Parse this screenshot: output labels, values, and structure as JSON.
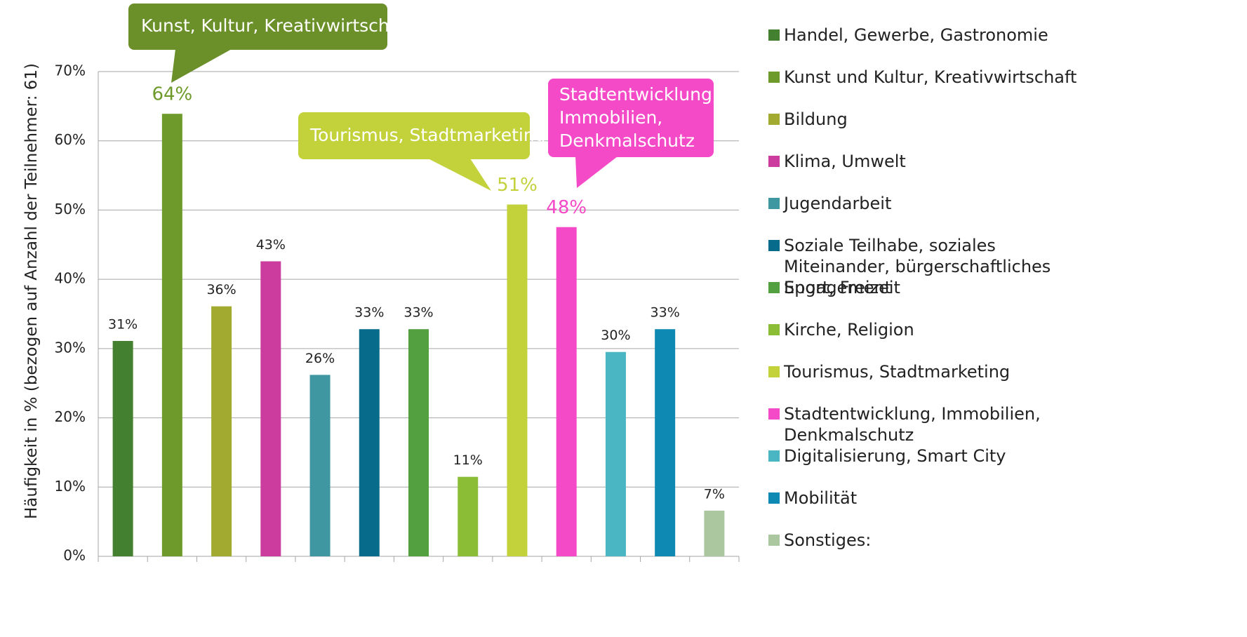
{
  "chart_data": {
    "type": "bar",
    "y_label": "Häufigkeit in % (bezogen auf Anzahl der Teilnehmer: 61)",
    "categories": [
      "Handel, Gewerbe, Gastronomie",
      "Kunst und Kultur, Kreativwirtschaft",
      "Bildung",
      "Klima, Umwelt",
      "Jugendarbeit",
      "Soziale Teilhabe, soziales Miteinander, bürgerschaftliches Engagement",
      "Sport, Freizeit",
      "Kirche, Religion",
      "Tourismus, Stadtmarketing",
      "Stadtentwicklung, Immobilien, Denkmalschutz",
      "Digitalisierung, Smart City",
      "Mobilität",
      "Sonstiges:"
    ],
    "values": [
      31.1,
      63.9,
      36.1,
      42.6,
      26.2,
      32.8,
      32.8,
      11.48,
      50.8,
      47.54,
      29.51,
      32.8,
      6.6
    ],
    "value_labels": [
      "31%",
      "64%",
      "36%",
      "43%",
      "26%",
      "33%",
      "33%",
      "11%",
      "51%",
      "48%",
      "30%",
      "33%",
      "7%"
    ],
    "colors": [
      "#43802f",
      "#6d9a2b",
      "#a2ab30",
      "#cc3c9f",
      "#3f97a1",
      "#076c8b",
      "#52a040",
      "#8cbd37",
      "#c3d13b",
      "#f54ac7",
      "#4ab6c4",
      "#0e89b3",
      "#aac79f"
    ],
    "ylim": [
      0,
      70
    ],
    "yticks": [
      {
        "value": 0,
        "label": "0%"
      },
      {
        "value": 10,
        "label": "10%"
      },
      {
        "value": 20,
        "label": "20%"
      },
      {
        "value": 30,
        "label": "30%"
      },
      {
        "value": 40,
        "label": "40%"
      },
      {
        "value": 50,
        "label": "50%"
      },
      {
        "value": 60,
        "label": "60%"
      },
      {
        "value": 70,
        "label": "70%"
      }
    ],
    "grid": true,
    "legend": "right",
    "annotations": [
      "Kunst, Kultur, Kreativwirtschaft",
      "Tourismus, Stadtmarketing",
      "Stadtentwicklung,\nImmobilien,\nDenkmalschutz"
    ]
  }
}
